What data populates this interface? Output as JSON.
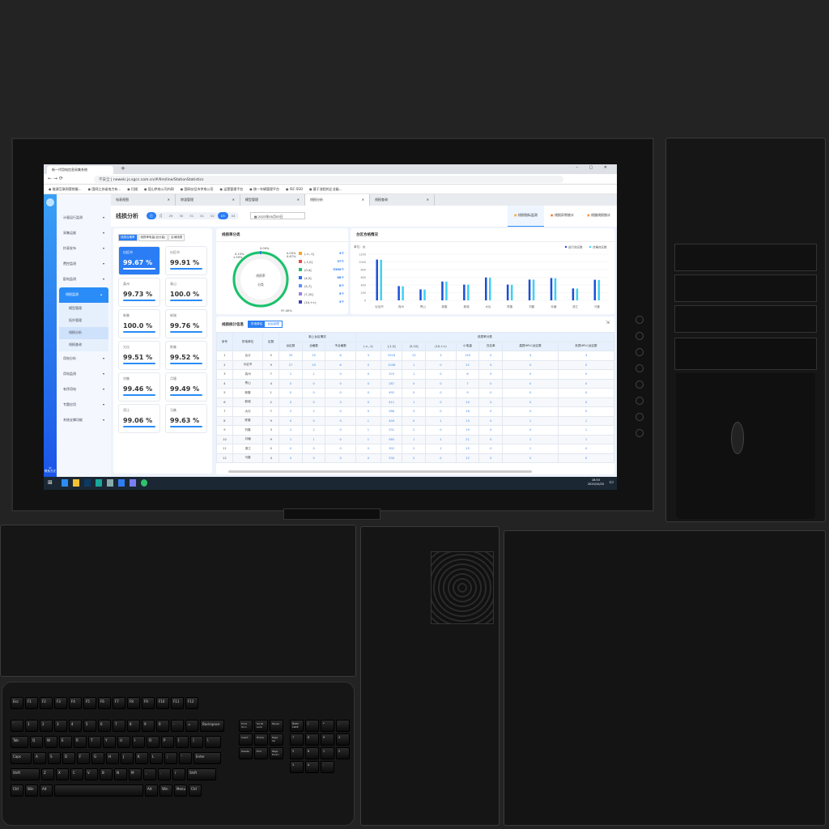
{
  "browser": {
    "tab_title": "新一代用电信息采集系统",
    "insecure": "不安全",
    "url": "newelc.js.sgcc.com.cn/#/llm/line/StationStatistics",
    "bookmarks": [
      "能源互联网营销服...",
      "国网江苏省电力有...",
      "扫描",
      "昆山供电公司内网",
      "国网仪征市供电公司",
      "运营管理平台",
      "统一车辆管理平台",
      "ISC-SSO",
      "基于流程的企业级..."
    ]
  },
  "sidebar": {
    "items": [
      {
        "label": "计量运行监测"
      },
      {
        "label": "采集运维"
      },
      {
        "label": "抄表发布"
      },
      {
        "label": "费控监测"
      },
      {
        "label": "配电监测"
      },
      {
        "label": "线损监测",
        "active": true
      }
    ],
    "sub_items": [
      {
        "label": "模型管理"
      },
      {
        "label": "拓扑管理"
      },
      {
        "label": "线损分析",
        "active": true
      },
      {
        "label": "线损查询"
      }
    ],
    "items_after": [
      {
        "label": "用电分析"
      },
      {
        "label": "用电监测"
      },
      {
        "label": "有序用电"
      },
      {
        "label": "专题应用"
      },
      {
        "label": "系统支撑功能"
      }
    ],
    "contact": "联系方式"
  },
  "app_tabs": [
    {
      "label": "电表视图"
    },
    {
      "label": "除湿管理"
    },
    {
      "label": "模型管理"
    },
    {
      "label": "线损分析",
      "active": true
    },
    {
      "label": "线损查询"
    }
  ],
  "header": {
    "title": "线损分析",
    "day": "日",
    "month": "月",
    "dates": [
      "29",
      "30",
      "31",
      "01",
      "02",
      "03",
      "04"
    ],
    "active_date": "03",
    "date_value": "2023年05月03日",
    "right_tabs": [
      {
        "label": "线损指标监测",
        "active": true
      },
      {
        "label": "线损异常统计"
      },
      {
        "label": "线路线损统计"
      }
    ]
  },
  "cards_panel": {
    "tabs": [
      "线损合格率",
      "线损率电量(百分量)",
      "区域线损"
    ],
    "cards": [
      {
        "name": "仪征市",
        "value": "99.67 %"
      },
      {
        "name": "仪征市",
        "value": "99.91 %"
      },
      {
        "name": "真州",
        "value": "99.73 %"
      },
      {
        "name": "青山",
        "value": "100.0 %"
      },
      {
        "name": "新集",
        "value": "100.0 %"
      },
      {
        "name": "新城",
        "value": "99.76 %"
      },
      {
        "name": "大仪",
        "value": "99.51 %"
      },
      {
        "name": "陈集",
        "value": "99.52 %"
      },
      {
        "name": "刘集",
        "value": "99.46 %"
      },
      {
        "name": "月塘",
        "value": "99.49 %"
      },
      {
        "name": "滨江",
        "value": "99.06 %"
      },
      {
        "name": "马集",
        "value": "99.63 %"
      }
    ]
  },
  "donut": {
    "title": "线损率分类",
    "center": [
      "线损率",
      "分类"
    ],
    "labels": [
      "0.15%",
      "1.59%",
      "0.09%",
      "0.05%",
      "0.67%",
      "97.40%"
    ],
    "legend": [
      {
        "range": "(-∞,-1]",
        "count": "3个",
        "color": "#f5a623"
      },
      {
        "range": "(-1,0]",
        "count": "37个",
        "color": "#f04a4a"
      },
      {
        "range": "(0,4]",
        "count": "5380个",
        "color": "#19c26b"
      },
      {
        "range": "(4,5]",
        "count": "88个",
        "color": "#2a6ef0"
      },
      {
        "range": "(5,7]",
        "count": "8个",
        "color": "#5b8ff5"
      },
      {
        "range": "(7,10]",
        "count": "5个",
        "color": "#9b7fe0"
      },
      {
        "range": "(10,+∞)",
        "count": "3个",
        "color": "#3f3fb5"
      }
    ]
  },
  "chart_data": {
    "type": "bar",
    "title": "台区合格情况",
    "ylabel": "单位：台",
    "ylim": [
      0,
      1200
    ],
    "yticks": [
      0,
      200,
      400,
      600,
      800,
      1000,
      1200
    ],
    "legend_position": "top-right",
    "grid": true,
    "categories": [
      "仪征市",
      "真州",
      "青山",
      "新集",
      "新城",
      "大仪",
      "陈集",
      "刘集",
      "月塘",
      "滨江",
      "马集"
    ],
    "series": [
      {
        "name": "运行台区数",
        "color": "#1a4fd6",
        "values": [
          1060,
          370,
          285,
          490,
          410,
          595,
          410,
          540,
          580,
          310,
          535
        ]
      },
      {
        "name": "合格台区数",
        "color": "#3fd0f5",
        "values": [
          1055,
          365,
          280,
          488,
          410,
          590,
          405,
          538,
          575,
          305,
          530
        ]
      }
    ]
  },
  "table": {
    "title": "线损统计信息",
    "toggle": [
      "供电单位",
      "台区经理"
    ],
    "group1": "新上台区情况",
    "group2": "线损率分类",
    "headers": [
      "序号",
      "供电单位",
      "区数",
      "台区数",
      "合格数",
      "不合格数",
      "(-∞,-1)",
      "[-1,5]",
      "(5,10]",
      "(10,+∞)",
      "小电量",
      "白名单",
      "高损HPLC台区数",
      "负损HPLC台区数"
    ],
    "rows": [
      [
        "1",
        "合计",
        "5",
        "33",
        "25",
        "8",
        "3",
        "5518",
        "13",
        "3",
        "150",
        "0",
        "3",
        "3"
      ],
      [
        "2",
        "仪征市",
        "9",
        "27",
        "19",
        "8",
        "0",
        "1038",
        "1",
        "0",
        "22",
        "0",
        "0",
        "0"
      ],
      [
        "3",
        "真州",
        "7",
        "1",
        "1",
        "0",
        "0",
        "370",
        "1",
        "0",
        "6",
        "0",
        "0",
        "0"
      ],
      [
        "4",
        "青山",
        "4",
        "0",
        "0",
        "0",
        "0",
        "287",
        "0",
        "0",
        "7",
        "0",
        "0",
        "0"
      ],
      [
        "5",
        "新集",
        "1",
        "0",
        "0",
        "0",
        "0",
        "492",
        "0",
        "0",
        "9",
        "0",
        "0",
        "0"
      ],
      [
        "6",
        "新城",
        "2",
        "0",
        "0",
        "0",
        "0",
        "411",
        "1",
        "0",
        "10",
        "0",
        "0",
        "0"
      ],
      [
        "7",
        "大仪",
        "7",
        "2",
        "2",
        "0",
        "0",
        "588",
        "3",
        "0",
        "16",
        "0",
        "0",
        "0"
      ],
      [
        "8",
        "陈集",
        "9",
        "0",
        "0",
        "0",
        "1",
        "404",
        "0",
        "1",
        "13",
        "0",
        "1",
        "1"
      ],
      [
        "9",
        "刘集",
        "3",
        "2",
        "2",
        "0",
        "1",
        "531",
        "2",
        "0",
        "19",
        "0",
        "0",
        "1"
      ],
      [
        "10",
        "月塘",
        "9",
        "1",
        "1",
        "0",
        "1",
        "565",
        "1",
        "1",
        "21",
        "0",
        "1",
        "1"
      ],
      [
        "11",
        "滨江",
        "0",
        "0",
        "0",
        "0",
        "0",
        "302",
        "2",
        "1",
        "15",
        "0",
        "1",
        "0"
      ],
      [
        "12",
        "马集",
        "4",
        "0",
        "0",
        "0",
        "0",
        "530",
        "2",
        "0",
        "12",
        "0",
        "0",
        "0"
      ]
    ]
  },
  "taskbar": {
    "time": "16:53",
    "date": "2020/10/20"
  },
  "keyboard": {
    "rows": [
      [
        "Esc",
        "F1",
        "F2",
        "F3",
        "F4",
        "F5",
        "F6",
        "F7",
        "F8",
        "F9",
        "F10",
        "F11",
        "F12"
      ],
      [
        "`",
        "1",
        "2",
        "3",
        "4",
        "5",
        "6",
        "7",
        "8",
        "9",
        "0",
        "-",
        "=",
        "Backspace"
      ],
      [
        "Tab",
        "Q",
        "W",
        "E",
        "R",
        "T",
        "Y",
        "U",
        "I",
        "O",
        "P",
        "[",
        "]",
        "\\"
      ],
      [
        "Caps",
        "A",
        "S",
        "D",
        "F",
        "G",
        "H",
        "J",
        "K",
        "L",
        ";",
        "'",
        "Enter"
      ],
      [
        "Shift",
        "Z",
        "X",
        "C",
        "V",
        "B",
        "N",
        "M",
        ",",
        ".",
        "/",
        "Shift"
      ],
      [
        "Ctrl",
        "Win",
        "Alt",
        "",
        "Alt",
        "Win",
        "Menu",
        "Ctrl"
      ]
    ],
    "nav": [
      "Print Scrn",
      "Scroll Lock",
      "Pause",
      "Insert",
      "Home",
      "Page Up",
      "Delete",
      "End",
      "Page Down"
    ],
    "numpad": [
      "Num Lock",
      "/",
      "*",
      "-",
      "7",
      "8",
      "9",
      "4",
      "5",
      "6",
      "1",
      "2",
      "3",
      "0",
      "."
    ]
  }
}
